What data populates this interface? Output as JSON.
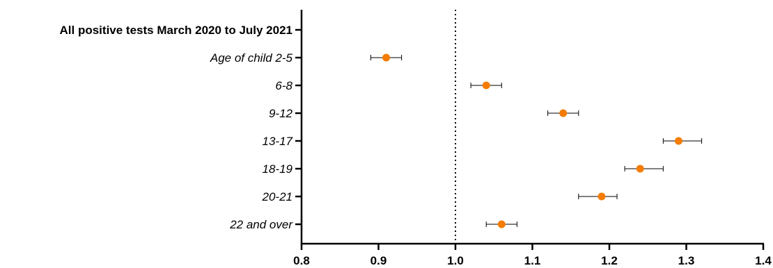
{
  "chart_data": {
    "type": "scatter",
    "orientation": "horizontal-forest-plot",
    "categories": [
      "All positive tests March 2020 to July 2021",
      "Age of child 2-5",
      "6-8",
      "9-12",
      "13-17",
      "18-19",
      "20-21",
      "22 and over"
    ],
    "category_styles": [
      "bold",
      "italic",
      "italic",
      "italic",
      "italic",
      "italic",
      "italic",
      "italic"
    ],
    "estimates": [
      null,
      0.91,
      1.04,
      1.14,
      1.29,
      1.24,
      1.19,
      1.06
    ],
    "ci_lower": [
      null,
      0.89,
      1.02,
      1.12,
      1.27,
      1.22,
      1.16,
      1.04
    ],
    "ci_upper": [
      null,
      0.93,
      1.06,
      1.16,
      1.32,
      1.27,
      1.21,
      1.08
    ],
    "xlim": [
      0.8,
      1.4
    ],
    "xticks": [
      "0.8",
      "0.9",
      "1.0",
      "1.1",
      "1.2",
      "1.3",
      "1.4"
    ],
    "reference_line": 1.0,
    "title": "",
    "xlabel": "",
    "ylabel": "",
    "grid": false,
    "colors": {
      "point": "#f57c00",
      "errorbar": "#000000",
      "axis": "#000000",
      "reference": "#000000"
    }
  }
}
